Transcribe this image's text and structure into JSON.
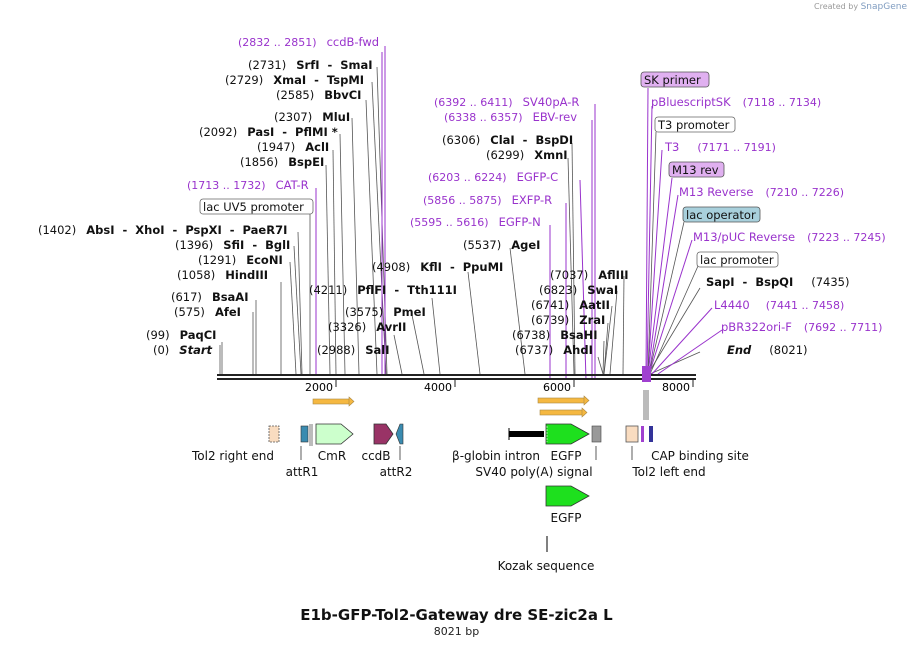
{
  "creator": {
    "prefix": "Created by",
    "brand": "SnapGene"
  },
  "title": "E1b-GFP-Tol2-Gateway dre SE-zic2a L",
  "subtitle": "8021 bp",
  "ticks": [
    {
      "pos": 2000,
      "label": "2000"
    },
    {
      "pos": 4000,
      "label": "4000"
    },
    {
      "pos": 6000,
      "label": "6000"
    },
    {
      "pos": 8000,
      "label": "8000"
    }
  ],
  "sites": [
    {
      "pos": 0,
      "name": "Start",
      "coord": "(0)",
      "italic": true
    },
    {
      "pos": 99,
      "name": "PaqCI",
      "coord": "(99)"
    },
    {
      "pos": 575,
      "name": "AfeI",
      "coord": "(575)"
    },
    {
      "pos": 617,
      "name": "BsaAI",
      "coord": "(617)"
    },
    {
      "pos": 1058,
      "name": "HindIII",
      "coord": "(1058)"
    },
    {
      "pos": 1291,
      "name": "EcoNI",
      "coord": "(1291)"
    },
    {
      "pos": 1396,
      "name": "SfiI  -  BglI",
      "coord": "(1396)"
    },
    {
      "pos": 1402,
      "name": "AbsI  -  XhoI  -  PspXI  -  PaeR7I",
      "coord": "(1402)"
    },
    {
      "pos": 1856,
      "name": "BspEI",
      "coord": "(1856)"
    },
    {
      "pos": 1947,
      "name": "AclI",
      "coord": "(1947)"
    },
    {
      "pos": 2092,
      "name": "PasI  -  PflMI *",
      "coord": "(2092)"
    },
    {
      "pos": 2307,
      "name": "MluI",
      "coord": "(2307)"
    },
    {
      "pos": 2585,
      "name": "BbvCI",
      "coord": "(2585)"
    },
    {
      "pos": 2729,
      "name": "XmaI  -  TspMI",
      "coord": "(2729)"
    },
    {
      "pos": 2731,
      "name": "SrfI  -  SmaI",
      "coord": "(2731)"
    },
    {
      "pos": 2988,
      "name": "SalI",
      "coord": "(2988)"
    },
    {
      "pos": 3326,
      "name": "AvrII",
      "coord": "(3326)"
    },
    {
      "pos": 3575,
      "name": "PmeI",
      "coord": "(3575)"
    },
    {
      "pos": 4211,
      "name": "PflFI  -  Tth111I",
      "coord": "(4211)"
    },
    {
      "pos": 4908,
      "name": "KflI  -  PpuMI",
      "coord": "(4908)"
    },
    {
      "pos": 5537,
      "name": "AgeI",
      "coord": "(5537)"
    },
    {
      "pos": 6299,
      "name": "XmnI",
      "coord": "(6299)"
    },
    {
      "pos": 6306,
      "name": "ClaI  -  BspDI",
      "coord": "(6306)"
    },
    {
      "pos": 6737,
      "name": "AhdI",
      "coord": "(6737)"
    },
    {
      "pos": 6738,
      "name": "BsaHI",
      "coord": "(6738)"
    },
    {
      "pos": 6739,
      "name": "ZraI",
      "coord": "(6739)"
    },
    {
      "pos": 6741,
      "name": "AatII",
      "coord": "(6741)"
    },
    {
      "pos": 6823,
      "name": "SwaI",
      "coord": "(6823)"
    },
    {
      "pos": 7037,
      "name": "AflIII",
      "coord": "(7037)"
    },
    {
      "pos": 7435,
      "name": "SapI  -  BspQI",
      "coord": "(7435)"
    },
    {
      "pos": 8021,
      "name": "End",
      "coord": "(8021)",
      "italic": true
    }
  ],
  "primers": [
    {
      "name": "ccdB-fwd",
      "range": "(2832 .. 2851)"
    },
    {
      "name": "CAT-R",
      "range": "(1713 .. 1732)"
    },
    {
      "name": "SV40pA-R",
      "range": "(6392 .. 6411)"
    },
    {
      "name": "EBV-rev",
      "range": "(6338 .. 6357)"
    },
    {
      "name": "EGFP-C",
      "range": "(6203 .. 6224)"
    },
    {
      "name": "EXFP-R",
      "range": "(5856 .. 5875)"
    },
    {
      "name": "EGFP-N",
      "range": "(5595 .. 5616)"
    },
    {
      "name": "SK primer",
      "range": ""
    },
    {
      "name": "pBluescriptSK",
      "range": "(7118 .. 7134)"
    },
    {
      "name": "T3",
      "range": "(7171 .. 7191)"
    },
    {
      "name": "M13 rev",
      "range": ""
    },
    {
      "name": "M13 Reverse",
      "range": "(7210 .. 7226)"
    },
    {
      "name": "M13/pUC Reverse",
      "range": "(7223 .. 7245)"
    },
    {
      "name": "L4440",
      "range": "(7441 .. 7458)"
    },
    {
      "name": "pBR322ori-F",
      "range": "(7692 .. 7711)"
    }
  ],
  "boxed_features": [
    {
      "name": "lac UV5 promoter"
    },
    {
      "name": "T3 promoter"
    },
    {
      "name": "lac operator"
    },
    {
      "name": "lac promoter"
    }
  ],
  "features": [
    {
      "name": "Tol2 right end",
      "color": "#f9dcc0"
    },
    {
      "name": "attR1",
      "color": "#3a8bb0"
    },
    {
      "name": "CmR",
      "color": "#ccffcc"
    },
    {
      "name": "ccdB",
      "color": "#993366"
    },
    {
      "name": "attR2",
      "color": "#3a8bb0"
    },
    {
      "name": "β-globin intron",
      "color": "#000000"
    },
    {
      "name": "EGFP",
      "color": "#1ee01e"
    },
    {
      "name": "SV40 poly(A) signal",
      "color": "#999999"
    },
    {
      "name": "Tol2 left end",
      "color": "#f9dcc0"
    },
    {
      "name": "CAP binding site",
      "color": "#333399"
    },
    {
      "name": "EGFP",
      "color": "#1ee01e"
    },
    {
      "name": "Kozak sequence",
      "color": "#000000"
    }
  ]
}
